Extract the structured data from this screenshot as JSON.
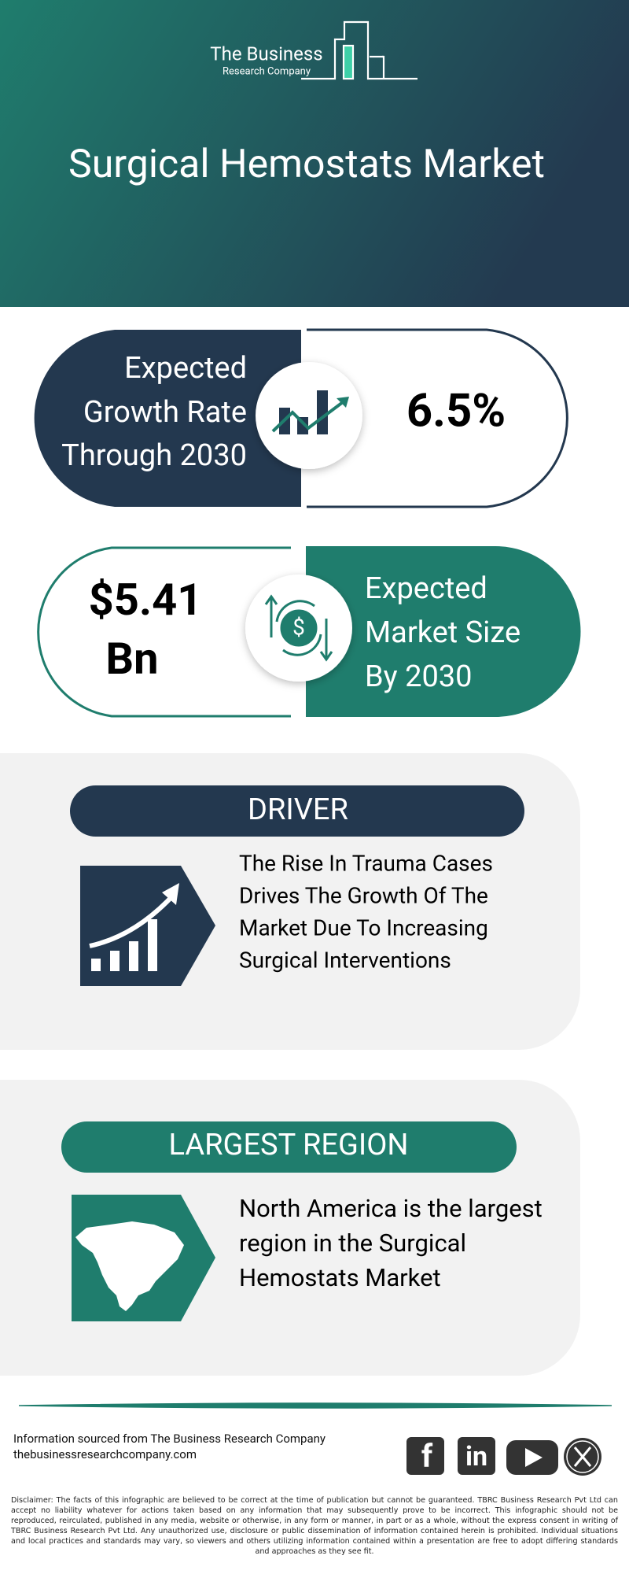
{
  "header": {
    "logo_line1": "The Business",
    "logo_line2": "Research Company",
    "title": "Surgical Hemostats Market"
  },
  "growth": {
    "label_lines": [
      "Expected",
      "Growth Rate",
      "Through 2030"
    ],
    "value": "6.5%"
  },
  "market_size": {
    "value_lines": [
      "$5.41",
      "Bn"
    ],
    "label_lines": [
      "Expected",
      "Market Size",
      "By 2030"
    ]
  },
  "driver": {
    "heading": "DRIVER",
    "text_lines": [
      "The Rise In Trauma Cases",
      "Drives The Growth Of The",
      "Market Due To Increasing",
      "Surgical Interventions"
    ]
  },
  "region": {
    "heading": "LARGEST REGION",
    "text_lines": [
      "North America is the largest",
      "region in the Surgical",
      "Hemostats Market"
    ]
  },
  "footer": {
    "source": "Information sourced from The Business Research Company",
    "website": "thebusinessresearchcompany.com",
    "social": [
      "f",
      "in"
    ],
    "disclaimer": "Disclaimer: The facts of this infographic are believed to be correct at the time of publication but cannot be guaranteed. TBRC Business Research Pvt Ltd can accept no liability whatever for actions taken based on any information that may subsequently prove to be incorrect. This infographic should not be reproduced, reirculated, published in any media, website or otherwise, in any form or manner, in part or as a whole, without the express consent in writing of TBRC Business Research Pvt Ltd. Any unauthorized use, disclosure or public dissemination of information contained herein is prohibited. Individual situations and local practices and standards may vary, so viewers and others utilizing information contained within a presentation are free to adopt differing standards and approaches as they see fit."
  }
}
